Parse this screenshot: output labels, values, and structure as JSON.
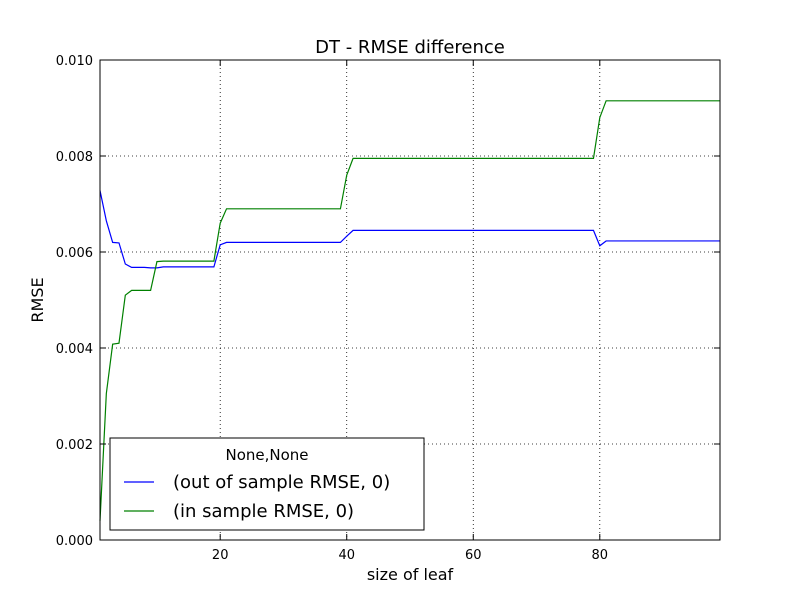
{
  "chart_data": {
    "type": "line",
    "title": "DT - RMSE difference",
    "xlabel": "size of leaf",
    "ylabel": "RMSE",
    "xlim": [
      1,
      99
    ],
    "ylim": [
      0,
      0.01
    ],
    "xticks": [
      20,
      40,
      60,
      80
    ],
    "xtick_labels": [
      "20",
      "40",
      "60",
      "80"
    ],
    "yticks": [
      0,
      0.002,
      0.004,
      0.006,
      0.008,
      0.01
    ],
    "ytick_labels": [
      "0.000",
      "0.002",
      "0.004",
      "0.006",
      "0.008",
      "0.010"
    ],
    "grid": true,
    "legend": {
      "title": "None,None",
      "placement": "lower-left"
    },
    "series": [
      {
        "name": "(out of sample RMSE, 0)",
        "color": "#0000ff",
        "x": [
          1,
          2,
          3,
          4,
          5,
          6,
          7,
          8,
          9,
          10,
          11,
          12,
          19,
          20,
          21,
          39,
          40,
          41,
          79,
          80,
          81,
          99
        ],
        "y": [
          0.00728,
          0.00665,
          0.0062,
          0.00619,
          0.00575,
          0.00568,
          0.00568,
          0.00568,
          0.00567,
          0.00567,
          0.00569,
          0.00569,
          0.00569,
          0.00615,
          0.0062,
          0.0062,
          0.00633,
          0.00645,
          0.00645,
          0.00613,
          0.00623,
          0.00623
        ]
      },
      {
        "name": "(in sample RMSE, 0)",
        "color": "#008000",
        "x": [
          1,
          2,
          3,
          4,
          5,
          6,
          7,
          8,
          9,
          10,
          11,
          12,
          19,
          20,
          21,
          39,
          40,
          41,
          79,
          80,
          81,
          99
        ],
        "y": [
          0.0004,
          0.00305,
          0.00408,
          0.0041,
          0.0051,
          0.0052,
          0.0052,
          0.0052,
          0.0052,
          0.0058,
          0.00581,
          0.00581,
          0.00581,
          0.0066,
          0.0069,
          0.0069,
          0.0076,
          0.00795,
          0.00795,
          0.0088,
          0.00915,
          0.00915
        ]
      }
    ]
  }
}
